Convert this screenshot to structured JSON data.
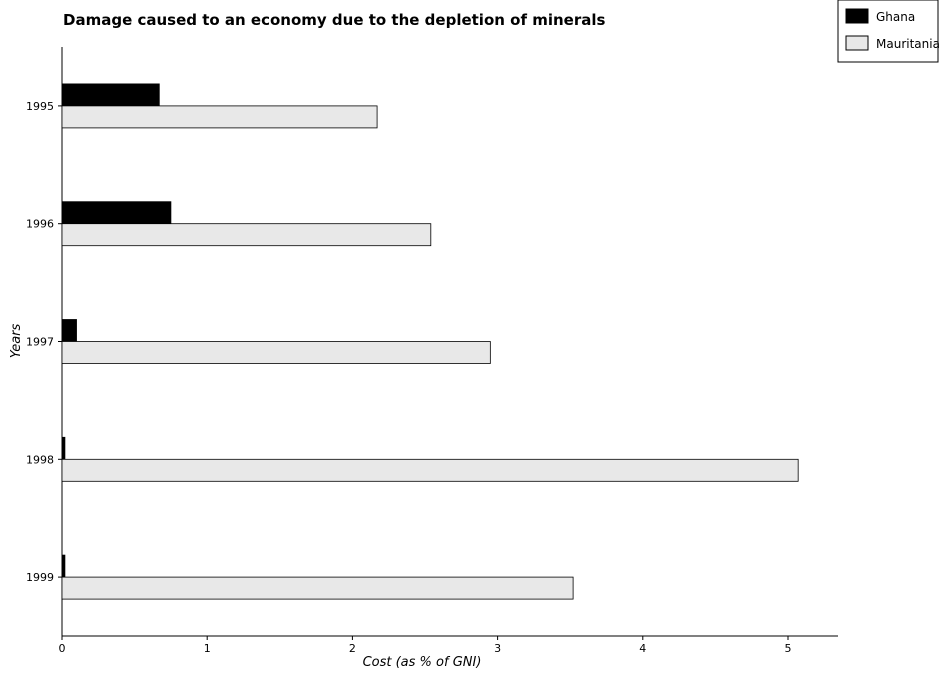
{
  "chart_data": {
    "type": "bar",
    "orientation": "horizontal",
    "title": "Damage caused to an economy due to the depletion of minerals",
    "xlabel": "Cost (as % of GNI)",
    "ylabel": "Years",
    "categories": [
      "1995",
      "1996",
      "1997",
      "1998",
      "1999"
    ],
    "xlim": [
      0,
      5.3
    ],
    "xticks": [
      0,
      1,
      2,
      3,
      4,
      5
    ],
    "xtick_labels": [
      "0",
      "1",
      "2",
      "3",
      "4",
      "5"
    ],
    "grid": false,
    "legend_position": "top-right",
    "series": [
      {
        "name": "Ghana",
        "color": "#000000",
        "values": [
          0.67,
          0.75,
          0.1,
          0.02,
          0.02
        ]
      },
      {
        "name": "Mauritania",
        "color": "#e8e8e8",
        "values": [
          2.17,
          2.54,
          2.95,
          5.07,
          3.52
        ]
      }
    ]
  }
}
